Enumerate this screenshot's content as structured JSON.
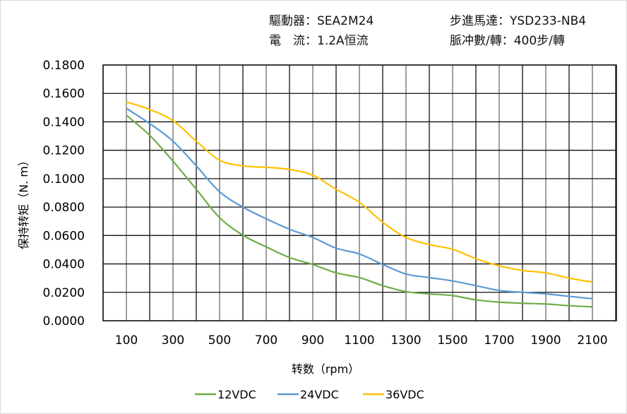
{
  "header": {
    "driver": "驅動器：SEA2M24",
    "motor": "步進馬達：YSD233-NB4",
    "current": "電　流：1.2A恒流",
    "steps": "脈冲數/轉：400步/轉"
  },
  "chart_data": {
    "type": "line",
    "title": "",
    "xlabel": "转数（rpm）",
    "ylabel": "保持转矩（N. m）",
    "x": [
      100,
      200,
      300,
      400,
      500,
      600,
      700,
      800,
      900,
      1000,
      1100,
      1200,
      1300,
      1400,
      1500,
      1600,
      1700,
      1800,
      1900,
      2000,
      2100
    ],
    "x_tick_labels": [
      "100",
      "300",
      "500",
      "700",
      "900",
      "1100",
      "1300",
      "1500",
      "1700",
      "1900",
      "2100"
    ],
    "y_tick_labels": [
      "0.0000",
      "0.0200",
      "0.0400",
      "0.0600",
      "0.0800",
      "0.1000",
      "0.1200",
      "0.1400",
      "0.1600",
      "0.1800"
    ],
    "ylim": [
      0,
      0.18
    ],
    "grid": true,
    "legend_position": "bottom",
    "series": [
      {
        "name": "12VDC",
        "color": "#70ad47",
        "values": [
          0.1446,
          0.1305,
          0.1123,
          0.0925,
          0.0726,
          0.0602,
          0.052,
          0.0445,
          0.0396,
          0.0337,
          0.0304,
          0.0247,
          0.0205,
          0.0189,
          0.0177,
          0.0147,
          0.0131,
          0.0123,
          0.0118,
          0.0106,
          0.0098
        ]
      },
      {
        "name": "24VDC",
        "color": "#5b9bd5",
        "values": [
          0.1495,
          0.1388,
          0.1264,
          0.109,
          0.0908,
          0.08,
          0.0718,
          0.0644,
          0.0586,
          0.0511,
          0.047,
          0.0396,
          0.0329,
          0.0304,
          0.028,
          0.0247,
          0.0213,
          0.02,
          0.0189,
          0.0172,
          0.0155
        ]
      },
      {
        "name": "36VDC",
        "color": "#ffc000",
        "values": [
          0.154,
          0.1487,
          0.1408,
          0.1264,
          0.113,
          0.109,
          0.108,
          0.1065,
          0.1024,
          0.0925,
          0.0834,
          0.0693,
          0.0586,
          0.0536,
          0.0503,
          0.0437,
          0.0387,
          0.0354,
          0.0337,
          0.03,
          0.0272
        ]
      }
    ]
  }
}
